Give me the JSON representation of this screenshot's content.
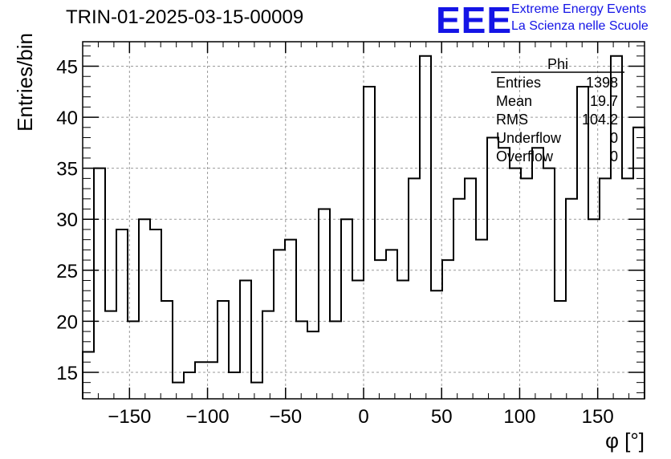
{
  "title": "TRIN-01-2025-03-15-00009",
  "logo": {
    "mark": "EEE",
    "line1": "Extreme Energy Events",
    "line2": "La Scienza nelle Scuole"
  },
  "stats": {
    "name": "Phi",
    "rows": [
      {
        "label": "Entries",
        "value": "1398"
      },
      {
        "label": "Mean",
        "value": "19.7"
      },
      {
        "label": "RMS",
        "value": "104.2"
      },
      {
        "label": "Underflow",
        "value": "0"
      },
      {
        "label": "Overflow",
        "value": "0"
      }
    ]
  },
  "chart_data": {
    "type": "histogram",
    "title": "TRIN-01-2025-03-15-00009",
    "xlabel": "φ [°]",
    "ylabel": "Entries/bin",
    "xlim": [
      -180,
      180
    ],
    "ylim": [
      12.4,
      47.4
    ],
    "grid": true,
    "bin_width": 7.2,
    "xticks": [
      -150,
      -100,
      -50,
      0,
      50,
      100,
      150
    ],
    "xtick_labels": [
      "−150",
      "−100",
      "−50",
      "0",
      "50",
      "100",
      "150"
    ],
    "yticks": [
      15,
      20,
      25,
      30,
      35,
      40,
      45
    ],
    "values": [
      17,
      35,
      21,
      29,
      20,
      30,
      29,
      22,
      14,
      15,
      16,
      16,
      22,
      15,
      24,
      14,
      21,
      27,
      28,
      20,
      19,
      31,
      20,
      30,
      24,
      43,
      26,
      27,
      24,
      34,
      46,
      23,
      26,
      32,
      34,
      28,
      38,
      37,
      35,
      34,
      37,
      35,
      22,
      32,
      43,
      30,
      34,
      46,
      34,
      39
    ]
  }
}
